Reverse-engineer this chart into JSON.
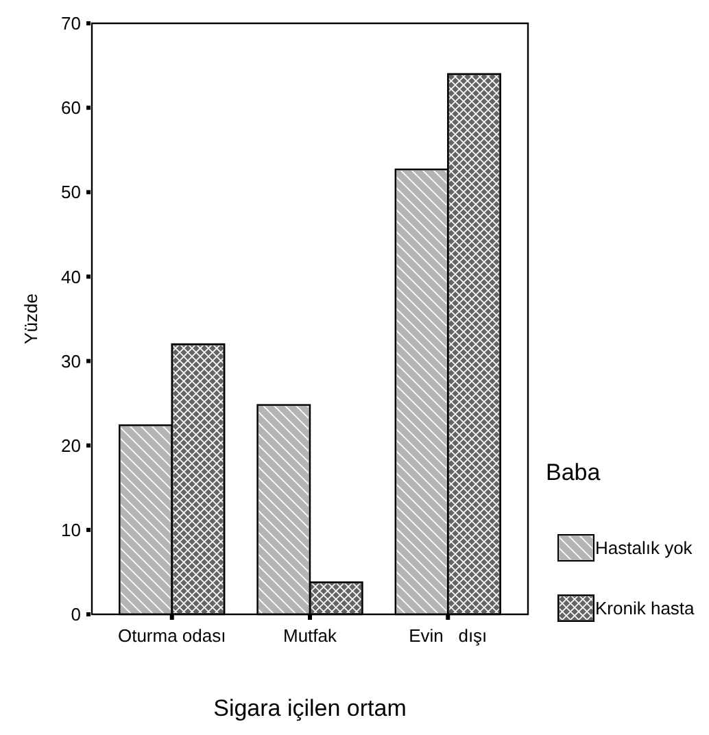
{
  "chart_data": {
    "type": "bar",
    "xlabel": "Sigara içilen ortam",
    "ylabel": "Yüzde",
    "legend_title": "Baba",
    "categories": [
      "Oturma odası",
      "Mutfak",
      "Evin   dışı"
    ],
    "series": [
      {
        "name": "Hastalık yok",
        "color": "#b4b4b4",
        "values": [
          22.4,
          24.8,
          52.7
        ]
      },
      {
        "name": "Kronik hasta",
        "color": "#646464",
        "values": [
          32.0,
          3.8,
          64.0
        ]
      }
    ],
    "ylim": [
      0,
      70
    ],
    "yticks": [
      0,
      10,
      20,
      30,
      40,
      50,
      60,
      70
    ],
    "grid": false,
    "legend": "right"
  }
}
